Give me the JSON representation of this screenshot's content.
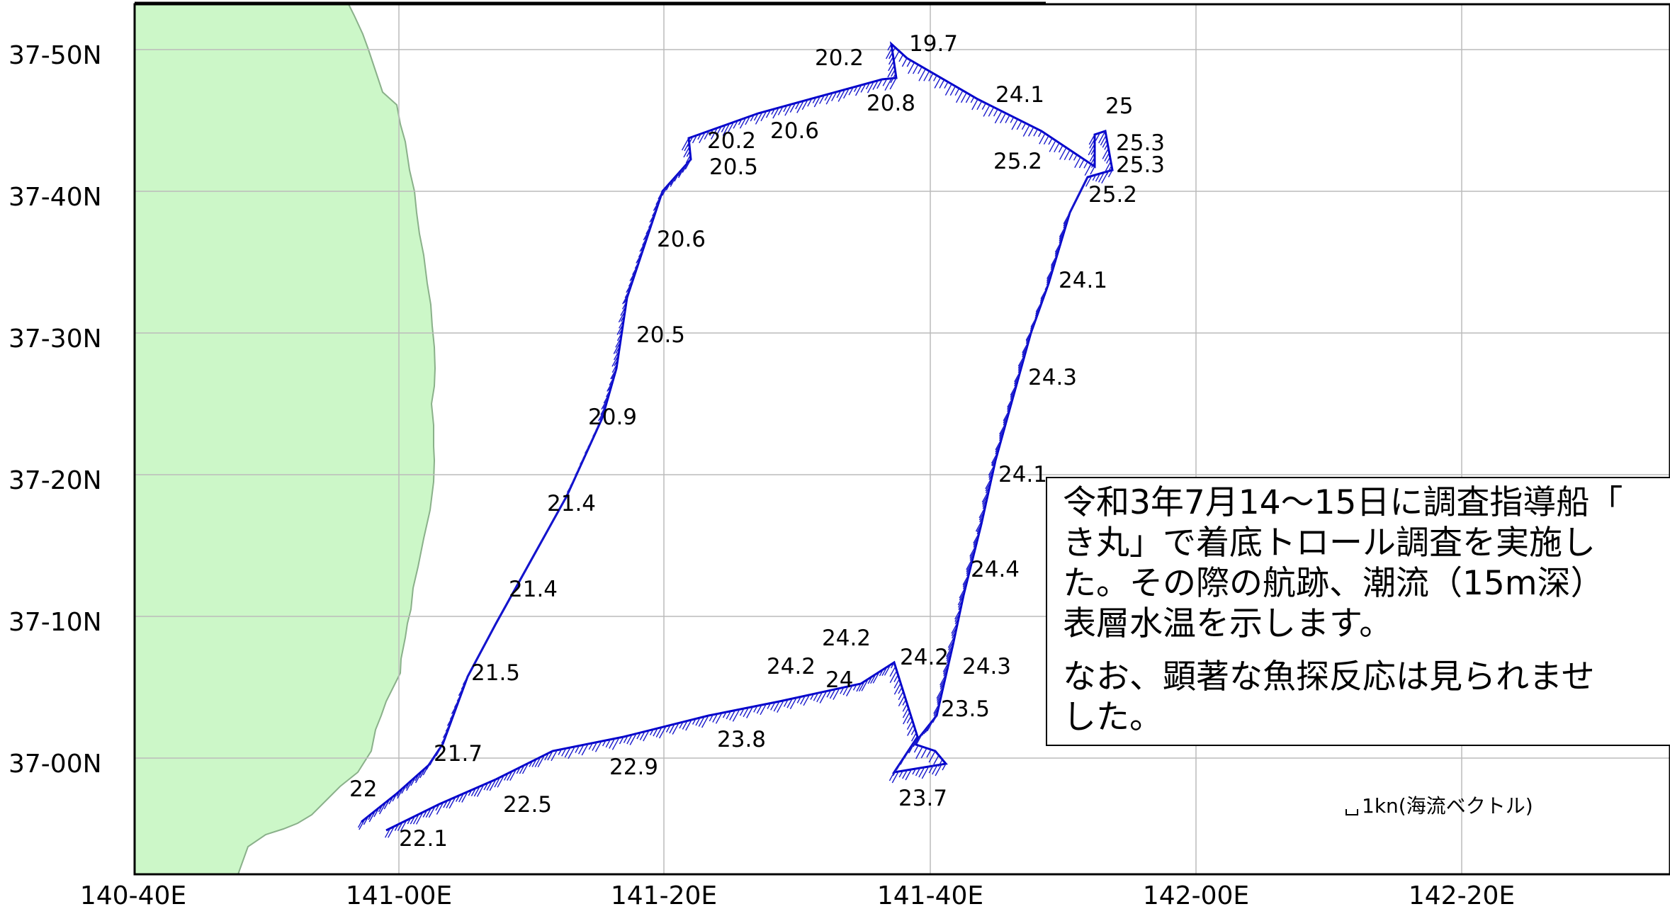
{
  "map": {
    "lat_labels": [
      "37-50N",
      "37-40N",
      "37-30N",
      "37-20N",
      "37-10N",
      "37-00N"
    ],
    "lon_labels": [
      "140-40E",
      "141-00E",
      "141-20E",
      "141-40E",
      "142-00E",
      "142-20E"
    ],
    "temperature_labels": [
      "19.7",
      "20.2",
      "20.8",
      "24.1",
      "25",
      "20.2",
      "20.6",
      "25.3",
      "25.2",
      "25.3",
      "20.5",
      "25.2",
      "20.6",
      "24.1",
      "20.5",
      "24.3",
      "20.9",
      "24.1",
      "21.4",
      "24.4",
      "21.4",
      "24.2",
      "24.2",
      "24.2",
      "24.3",
      "24",
      "21.5",
      "23.5",
      "23.8",
      "21.7",
      "22.9",
      "22",
      "23.7",
      "22.5",
      "22.1"
    ],
    "scale_label": "1kn(海流ベクトル)",
    "colors": {
      "land": "#ccf7c8",
      "track": "#0000cc",
      "grid": "#bbbbbb"
    }
  },
  "note": {
    "paragraph1": [
      "令和3年7月14～15日に調査指導船「",
      "き丸」で着底トロール調査を実施し",
      "た。その際の航跡、潮流（15m深）",
      "表層水温を示します。"
    ],
    "paragraph2": [
      "なお、顕著な魚探反応は見られませ",
      "した。"
    ]
  }
}
